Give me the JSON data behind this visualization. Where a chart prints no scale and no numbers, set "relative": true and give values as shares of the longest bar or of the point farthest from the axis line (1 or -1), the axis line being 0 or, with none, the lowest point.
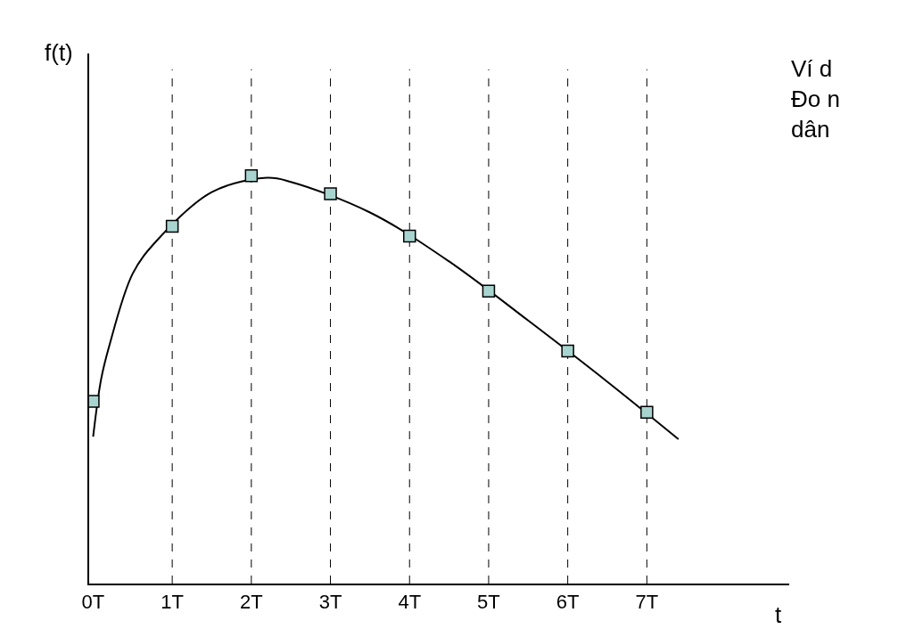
{
  "chart_data": {
    "type": "line",
    "relative": true,
    "xlabel": "t",
    "ylabel": "f(t)",
    "xlim": [
      -0.05,
      8.8
    ],
    "xticks": [
      {
        "value": 0,
        "label": "0T"
      },
      {
        "value": 1,
        "label": "1T"
      },
      {
        "value": 2,
        "label": "2T"
      },
      {
        "value": 3,
        "label": "3T"
      },
      {
        "value": 4,
        "label": "4T"
      },
      {
        "value": 5,
        "label": "5T"
      },
      {
        "value": 6,
        "label": "6T"
      },
      {
        "value": 7,
        "label": "7T"
      }
    ],
    "grid": false,
    "series": [
      {
        "color": "#000000",
        "marker": "none",
        "line_style": "solid",
        "x": [
          0,
          0.1,
          0.2,
          0.5,
          0.8,
          1.5,
          2.2,
          2.5,
          3.5,
          4.5,
          5.5,
          6.5,
          7.4
        ],
        "values": [
          0.36,
          0.5,
          0.58,
          0.76,
          0.84,
          0.96,
          0.995,
          0.985,
          0.91,
          0.79,
          0.645,
          0.495,
          0.354
        ]
      },
      {
        "type": "scatter",
        "color": "#a8d4d0",
        "marker": "square",
        "x": [
          0,
          1,
          2,
          3,
          4,
          5,
          6,
          7
        ],
        "values": [
          0.447,
          0.876,
          1,
          0.956,
          0.852,
          0.717,
          0.57,
          0.42
        ]
      }
    ],
    "ref_lines": [
      {
        "axis": "x",
        "value": 1,
        "line_style": "dashed",
        "color": "#000000"
      },
      {
        "axis": "x",
        "value": 2,
        "line_style": "dashed",
        "color": "#000000"
      },
      {
        "axis": "x",
        "value": 3,
        "line_style": "dashed",
        "color": "#000000"
      },
      {
        "axis": "x",
        "value": 4,
        "line_style": "dashed",
        "color": "#000000"
      },
      {
        "axis": "x",
        "value": 5,
        "line_style": "dashed",
        "color": "#000000"
      },
      {
        "axis": "x",
        "value": 6,
        "line_style": "dashed",
        "color": "#000000"
      },
      {
        "axis": "x",
        "value": 7,
        "line_style": "dashed",
        "color": "#000000"
      }
    ],
    "annotations": [
      "Ví d\nĐo n\ndân"
    ]
  }
}
